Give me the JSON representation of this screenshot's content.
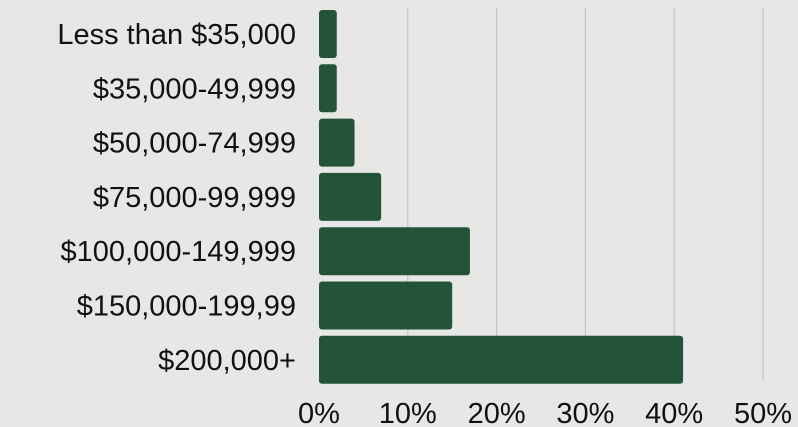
{
  "chart_data": {
    "type": "bar",
    "orientation": "horizontal",
    "title": "",
    "xlabel": "",
    "ylabel": "",
    "categories": [
      "Less than $35,000",
      "$35,000-49,999",
      "$50,000-74,999",
      "$75,000-99,999",
      "$100,000-149,999",
      "$150,000-199,99",
      "$200,000+"
    ],
    "values": [
      2,
      2,
      4,
      7,
      17,
      15,
      41
    ],
    "xlim": [
      0,
      50
    ],
    "xticks": [
      0,
      10,
      20,
      30,
      40,
      50
    ],
    "tick_labels": [
      "0%",
      "10%",
      "20%",
      "30%",
      "40%",
      "50%"
    ],
    "grid": "vertical",
    "bar_color": "#23543a",
    "grid_color": "#c4c6c4",
    "background_color": "#e7e8e6"
  }
}
